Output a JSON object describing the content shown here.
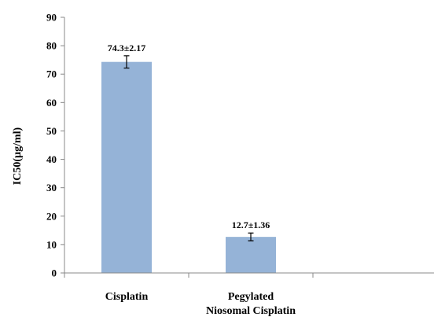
{
  "chart_data": {
    "type": "bar",
    "categories": [
      "Cisplatin",
      "Pegylated Niosomal Cisplatin"
    ],
    "category_lines": [
      [
        "Cisplatin"
      ],
      [
        "Pegylated",
        "Niosomal Cisplatin"
      ]
    ],
    "values": [
      74.3,
      12.7
    ],
    "errors": [
      2.17,
      1.36
    ],
    "data_labels": [
      "74.3±2.17",
      "12.7±1.36"
    ],
    "title": "",
    "xlabel": "",
    "ylabel": "IC50(µg/ml)",
    "ylim": [
      0,
      90
    ],
    "yticks": [
      0,
      10,
      20,
      30,
      40,
      50,
      60,
      70,
      80,
      90
    ],
    "grid": false,
    "bar_color": "#95b3d7"
  }
}
